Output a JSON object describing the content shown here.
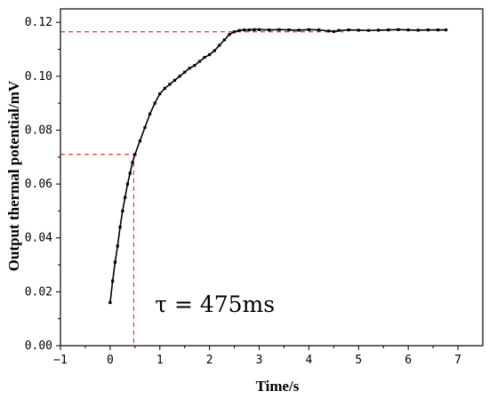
{
  "chart_data": {
    "type": "line",
    "xlabel": "Time/s",
    "ylabel": "Output thermal potential/mV",
    "xlim": [
      -1,
      7.5
    ],
    "ylim": [
      0,
      0.125
    ],
    "xticks": [
      -1,
      0,
      1,
      2,
      3,
      4,
      5,
      6,
      7
    ],
    "yticks": [
      0.0,
      0.02,
      0.04,
      0.06,
      0.08,
      0.1,
      0.12
    ],
    "xtick_labels": [
      "−1",
      "0",
      "1",
      "2",
      "3",
      "4",
      "5",
      "6",
      "7"
    ],
    "ytick_labels": [
      "0.00",
      "0.02",
      "0.04",
      "0.06",
      "0.08",
      "0.10",
      "0.12"
    ],
    "grid": false,
    "series": [
      {
        "color": "#000000",
        "marker": "square",
        "points": [
          [
            0.0,
            0.016
          ],
          [
            0.05,
            0.024
          ],
          [
            0.1,
            0.031
          ],
          [
            0.15,
            0.037
          ],
          [
            0.2,
            0.044
          ],
          [
            0.25,
            0.05
          ],
          [
            0.3,
            0.055
          ],
          [
            0.35,
            0.06
          ],
          [
            0.4,
            0.064
          ],
          [
            0.45,
            0.068
          ],
          [
            0.5,
            0.071
          ],
          [
            0.6,
            0.076
          ],
          [
            0.7,
            0.081
          ],
          [
            0.8,
            0.086
          ],
          [
            0.9,
            0.09
          ],
          [
            1.0,
            0.0935
          ],
          [
            1.1,
            0.0955
          ],
          [
            1.2,
            0.097
          ],
          [
            1.3,
            0.0985
          ],
          [
            1.4,
            0.1
          ],
          [
            1.5,
            0.1015
          ],
          [
            1.6,
            0.103
          ],
          [
            1.7,
            0.104
          ],
          [
            1.8,
            0.1055
          ],
          [
            1.9,
            0.107
          ],
          [
            2.0,
            0.108
          ],
          [
            2.1,
            0.1095
          ],
          [
            2.2,
            0.1115
          ],
          [
            2.3,
            0.1135
          ],
          [
            2.4,
            0.1155
          ],
          [
            2.5,
            0.1165
          ],
          [
            2.6,
            0.117
          ],
          [
            2.7,
            0.1172
          ],
          [
            2.8,
            0.1172
          ],
          [
            2.9,
            0.1173
          ],
          [
            3.0,
            0.1173
          ],
          [
            3.2,
            0.1172
          ],
          [
            3.4,
            0.1173
          ],
          [
            3.6,
            0.1172
          ],
          [
            3.8,
            0.1171
          ],
          [
            4.0,
            0.1173
          ],
          [
            4.2,
            0.1172
          ],
          [
            4.4,
            0.1168
          ],
          [
            4.5,
            0.1166
          ],
          [
            4.6,
            0.117
          ],
          [
            4.8,
            0.1172
          ],
          [
            5.0,
            0.1171
          ],
          [
            5.2,
            0.117
          ],
          [
            5.4,
            0.1171
          ],
          [
            5.6,
            0.1172
          ],
          [
            5.8,
            0.1173
          ],
          [
            6.0,
            0.1172
          ],
          [
            6.2,
            0.1171
          ],
          [
            6.4,
            0.1172
          ],
          [
            6.6,
            0.1172
          ],
          [
            6.76,
            0.1172
          ]
        ]
      }
    ],
    "reference_lines": {
      "color": "#e8302a",
      "tau_point": [
        0.475,
        0.071
      ],
      "steady_value": 0.1165,
      "steady_x_end": 4.7
    },
    "annotation": "τ = 475ms",
    "annotation_data_x": 0.9,
    "annotation_data_y": 0.0125
  }
}
